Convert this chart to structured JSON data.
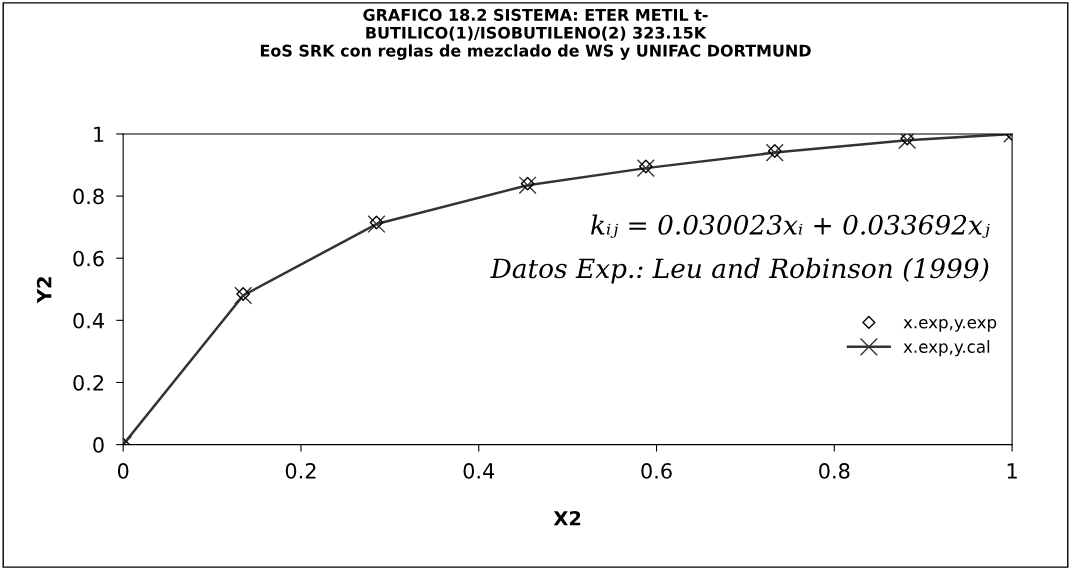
{
  "chart_data": {
    "type": "line",
    "title": "GRAFICO 18.2 SISTEMA: ETER METIL t-\nBUTILICO(1)/ISOBUTILENO(2) 323.15K\nEoS SRK con reglas de mezclado de WS y UNIFAC DORTMUND",
    "xlabel": "X2",
    "ylabel": "Y2",
    "x": [
      0,
      0.135,
      0.285,
      0.455,
      0.588,
      0.733,
      0.882,
      1
    ],
    "series": [
      {
        "name": "x.exp,y.exp",
        "type": "scatter",
        "marker": "diamond",
        "color": "#000000",
        "values": [
          0,
          0.485,
          0.715,
          0.84,
          0.895,
          0.945,
          0.985,
          1.0
        ]
      },
      {
        "name": "x.exp,y.cal",
        "marker": "cross",
        "color": "#333333",
        "values": [
          0,
          0.48,
          0.71,
          0.835,
          0.89,
          0.94,
          0.98,
          1.0
        ]
      }
    ],
    "xlim": [
      0,
      1
    ],
    "xticks": [
      0,
      0.2,
      0.4,
      0.6,
      0.8,
      1
    ],
    "ylim": [
      0,
      1
    ],
    "yticks": [
      0,
      0.2,
      0.4,
      0.6,
      0.8,
      1
    ],
    "grid": false,
    "legend": "right",
    "annotations": [
      "kᵢⱼ = 0.030023xᵢ + 0.033692xⱼ",
      "Datos Exp.: Leu and Robinson (1999)"
    ]
  }
}
